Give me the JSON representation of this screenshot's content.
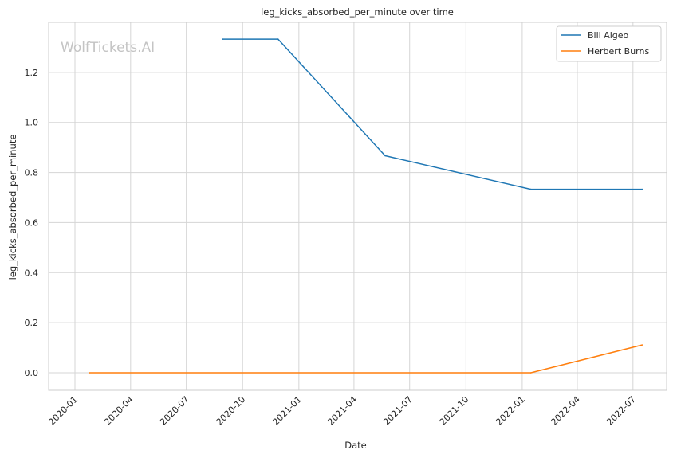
{
  "chart_data": {
    "type": "line",
    "title": "leg_kicks_absorbed_per_minute over time",
    "xlabel": "Date",
    "ylabel": "leg_kicks_absorbed_per_minute",
    "watermark": "WolfTickets.AI",
    "x_ticks": [
      "2020-01",
      "2020-04",
      "2020-07",
      "2020-10",
      "2021-01",
      "2021-04",
      "2021-07",
      "2021-10",
      "2022-01",
      "2022-04",
      "2022-07"
    ],
    "y_ticks": [
      "0.0",
      "0.2",
      "0.4",
      "0.6",
      "0.8",
      "1.0",
      "1.2"
    ],
    "xlim": [
      "2019-11-19",
      "2022-08-25"
    ],
    "ylim": [
      -0.07,
      1.4
    ],
    "grid": true,
    "legend": "top-right",
    "series": [
      {
        "name": "Bill Algeo",
        "color": "#1f77b4",
        "x": [
          "2020-08-29",
          "2020-11-28",
          "2021-05-22",
          "2022-01-15",
          "2022-07-16"
        ],
        "y": [
          1.333,
          1.333,
          0.867,
          0.733,
          0.733
        ]
      },
      {
        "name": "Herbert Burns",
        "color": "#ff7f0e",
        "x": [
          "2020-01-25",
          "2022-01-15",
          "2022-07-16"
        ],
        "y": [
          0.0,
          0.0,
          0.111
        ]
      }
    ]
  }
}
